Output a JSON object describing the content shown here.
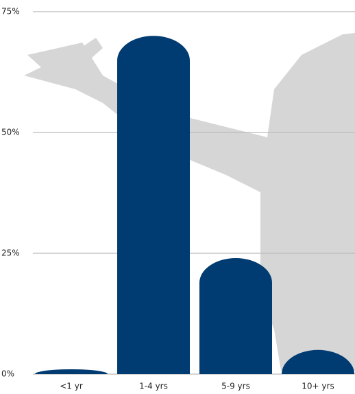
{
  "chart_data": {
    "type": "bar",
    "categories": [
      "<1 yr",
      "1-4 yrs",
      "5-9 yrs",
      "10+ yrs"
    ],
    "values": [
      1,
      70,
      24,
      5
    ],
    "color": "#003b72",
    "ylim": [
      0,
      75
    ],
    "yticks": [
      {
        "value": 0,
        "label": "0%"
      },
      {
        "value": 25,
        "label": "25%"
      },
      {
        "value": 50,
        "label": "50%"
      },
      {
        "value": 75,
        "label": "75%"
      }
    ],
    "grid": true
  }
}
